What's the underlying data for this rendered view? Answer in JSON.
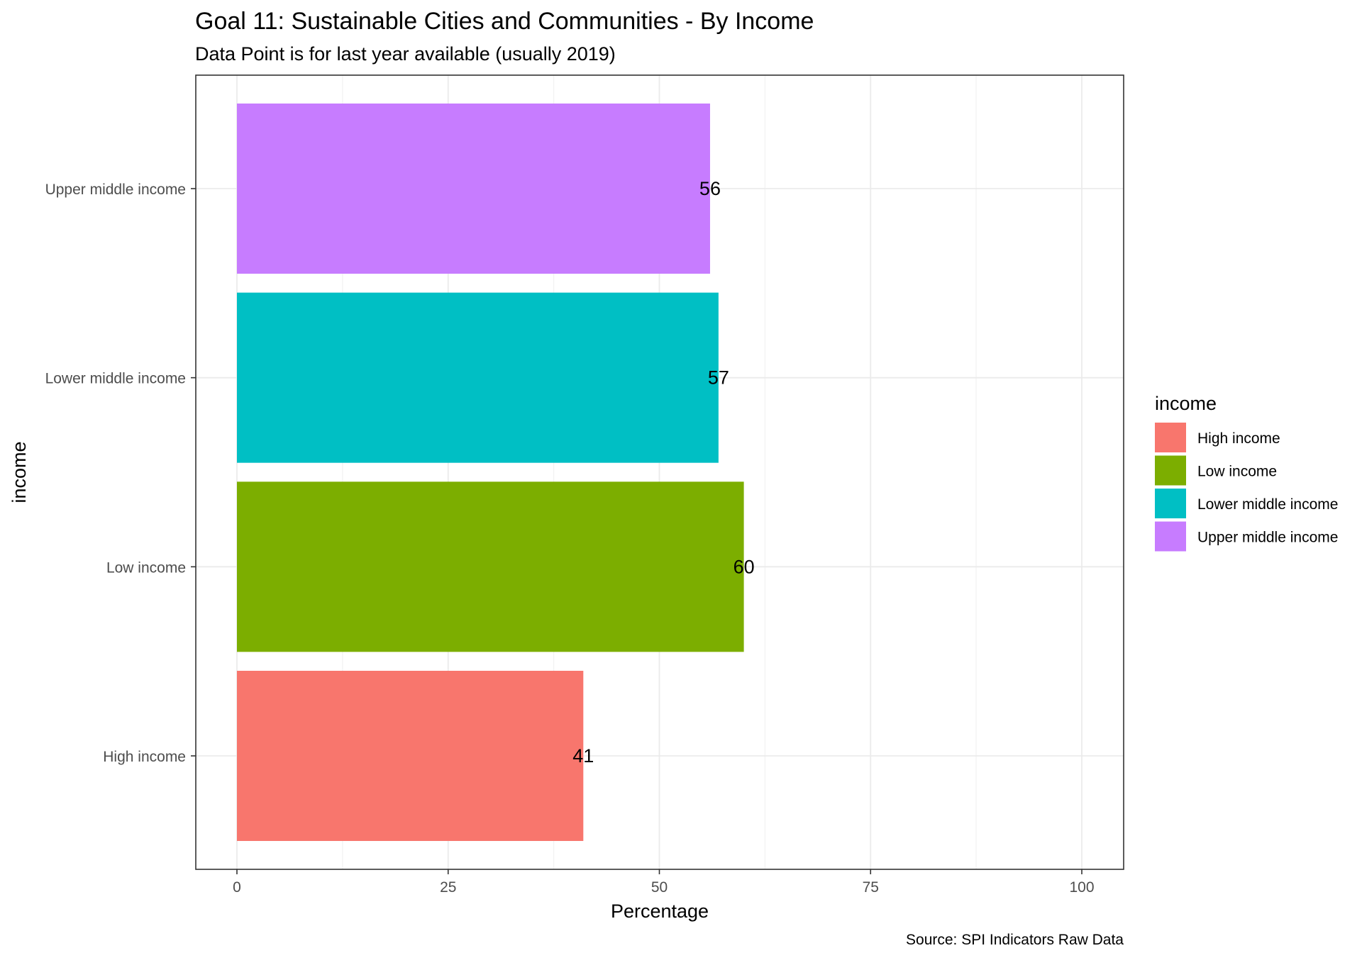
{
  "chart_data": {
    "type": "bar",
    "orientation": "horizontal",
    "title": "Goal 11: Sustainable Cities and Communities - By Income",
    "subtitle": "Data Point is for last year available (usually 2019)",
    "xlabel": "Percentage",
    "ylabel": "income",
    "caption": "Source: SPI Indicators Raw Data",
    "xlim": [
      0,
      100
    ],
    "xticks": [
      "0",
      "25",
      "50",
      "75",
      "100"
    ],
    "xtick_values": [
      0,
      25,
      50,
      75,
      100
    ],
    "categories": [
      "High income",
      "Low income",
      "Lower middle income",
      "Upper middle income"
    ],
    "values": [
      41,
      60,
      57,
      56
    ],
    "data_labels": [
      "41",
      "60",
      "57",
      "56"
    ],
    "colors": [
      "#F8766D",
      "#7CAE00",
      "#00BFC4",
      "#C77CFF"
    ],
    "grid": true,
    "legend": {
      "title": "income",
      "position": "right",
      "entries": [
        "High income",
        "Low income",
        "Lower middle income",
        "Upper middle income"
      ]
    }
  }
}
